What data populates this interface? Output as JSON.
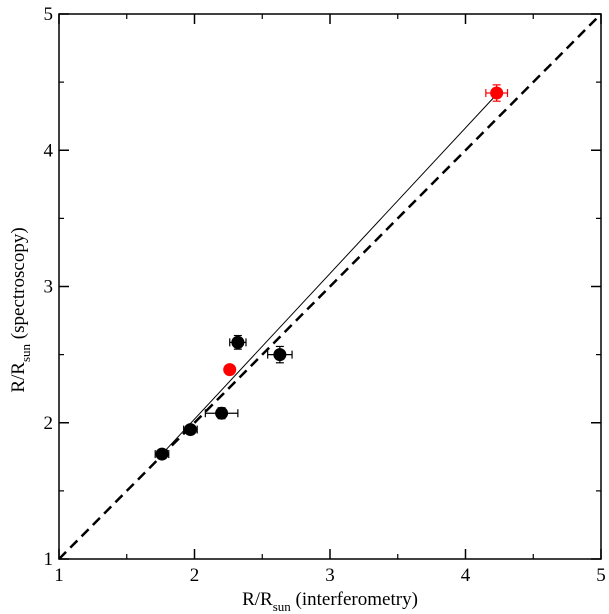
{
  "chart_data": {
    "type": "scatter",
    "xlabel": {
      "main": "R/R",
      "sub": "sun",
      "rest": " (interferometry)"
    },
    "ylabel": {
      "main": "R/R",
      "sub": "sun",
      "rest": " (spectroscopy)"
    },
    "xlim": [
      1,
      5
    ],
    "ylim": [
      1,
      5
    ],
    "xticks": [
      "1",
      "2",
      "3",
      "4",
      "5"
    ],
    "yticks": [
      "1",
      "2",
      "3",
      "4",
      "5"
    ],
    "grid": false,
    "legend": "none",
    "series": [
      {
        "color": "#000000",
        "points": [
          {
            "x": 1.76,
            "y": 1.77,
            "xerr": 0.05,
            "yerr": 0.03
          },
          {
            "x": 1.97,
            "y": 1.95,
            "xerr": 0.05,
            "yerr": 0.03
          },
          {
            "x": 2.2,
            "y": 2.07,
            "xerr": 0.12,
            "yerr": 0.04
          },
          {
            "x": 2.32,
            "y": 2.59,
            "xerr": 0.06,
            "yerr": 0.05
          },
          {
            "x": 2.63,
            "y": 2.5,
            "xerr": 0.09,
            "yerr": 0.06
          }
        ]
      },
      {
        "color": "#ff0000",
        "points": [
          {
            "x": 2.26,
            "y": 2.39,
            "xerr": 0.03,
            "yerr": 0.03
          },
          {
            "x": 4.23,
            "y": 4.42,
            "xerr": 0.08,
            "yerr": 0.06
          }
        ]
      }
    ],
    "lines": [
      {
        "style": "dashed",
        "from": [
          1,
          1
        ],
        "to": [
          5,
          5
        ]
      },
      {
        "style": "solid",
        "from": [
          1.76,
          1.77
        ],
        "to": [
          4.23,
          4.41
        ]
      }
    ]
  }
}
